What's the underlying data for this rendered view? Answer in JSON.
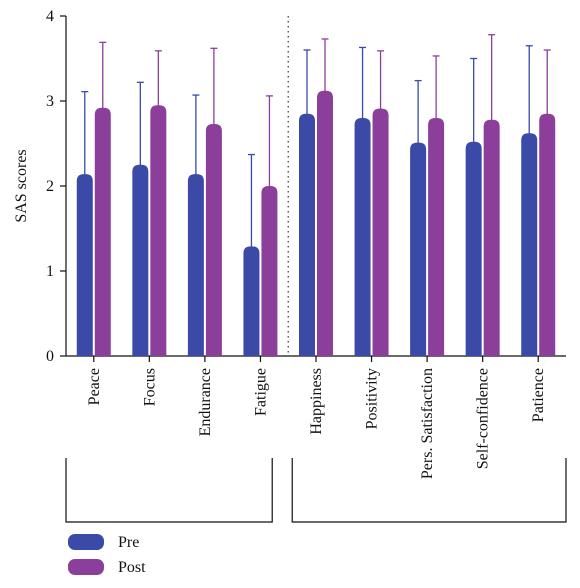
{
  "chart_data": {
    "type": "bar",
    "title": "",
    "xlabel": "",
    "ylabel": "SAS scores",
    "ylim": [
      0,
      4
    ],
    "yticks": [
      0,
      1,
      2,
      3,
      4
    ],
    "categories": [
      "Peace",
      "Focus",
      "Endurance",
      "Fatigue",
      "Happiness",
      "Positivity",
      "Pers. Satisfaction",
      "Self-confidence",
      "Patience"
    ],
    "series": [
      {
        "name": "Pre",
        "color": "#3a4aa6",
        "values": [
          2.14,
          2.25,
          2.14,
          1.29,
          2.85,
          2.8,
          2.51,
          2.52,
          2.62
        ],
        "error_upper": [
          3.11,
          3.22,
          3.07,
          2.37,
          3.6,
          3.63,
          3.24,
          3.5,
          3.65
        ]
      },
      {
        "name": "Post",
        "color": "#8b3f9b",
        "values": [
          2.92,
          2.95,
          2.73,
          2.0,
          3.12,
          2.91,
          2.8,
          2.78,
          2.85
        ],
        "error_upper": [
          3.69,
          3.59,
          3.62,
          3.06,
          3.73,
          3.59,
          3.53,
          3.78,
          3.6
        ]
      }
    ],
    "grid": false,
    "legend_position": "bottom-left",
    "group_divider_after": "Fatigue"
  }
}
